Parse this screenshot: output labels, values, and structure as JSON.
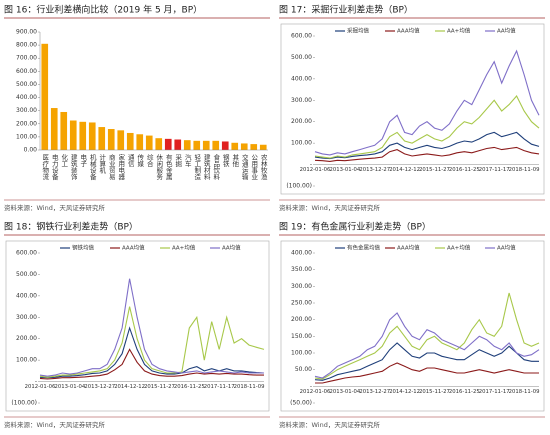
{
  "chart_data": [
    {
      "type": "bar",
      "title": "图 16：行业利差横向比较（2019 年 5 月，BP）",
      "source": "资料来源：Wind，天风证券研究所",
      "categories": [
        "医疗物流",
        "电力设备",
        "化工",
        "建筑装饰",
        "电子",
        "机械设备",
        "计算机",
        "商业贸易",
        "家用电器",
        "通信",
        "传媒",
        "综合",
        "休闲服务",
        "有色金属",
        "采掘",
        "汽车",
        "轻工制造",
        "建筑材料",
        "食品饮料",
        "钢铁",
        "其他",
        "交通运输",
        "公用事业",
        "农林牧渔"
      ],
      "values": [
        810,
        320,
        290,
        225,
        215,
        210,
        175,
        160,
        150,
        130,
        120,
        110,
        90,
        85,
        80,
        75,
        70,
        70,
        70,
        65,
        55,
        50,
        45,
        40
      ],
      "colors": [
        "#f5a300",
        "#f5a300",
        "#f5a300",
        "#f5a300",
        "#f5a300",
        "#f5a300",
        "#f5a300",
        "#f5a300",
        "#f5a300",
        "#f5a300",
        "#f5a300",
        "#f5a300",
        "#f5a300",
        "#e02020",
        "#e02020",
        "#f5a300",
        "#f5a300",
        "#f5a300",
        "#f5a300",
        "#e02020",
        "#f5a300",
        "#f5a300",
        "#f5a300",
        "#f5a300"
      ],
      "ylim": [
        0,
        900
      ],
      "yticks": [
        {
          "value": 0,
          "label": "0.00"
        },
        {
          "value": 100,
          "label": "100.00"
        },
        {
          "value": 200,
          "label": "200.00"
        },
        {
          "value": 300,
          "label": "300.00"
        },
        {
          "value": 400,
          "label": "400.00"
        },
        {
          "value": 500,
          "label": "500.00"
        },
        {
          "value": 600,
          "label": "600.00"
        },
        {
          "value": 700,
          "label": "700.00"
        },
        {
          "value": 800,
          "label": "800.00"
        },
        {
          "value": 900,
          "label": "900.00"
        }
      ]
    },
    {
      "type": "line",
      "title": "图 17：采掘行业利差走势（BP）",
      "source": "资料来源：Wind，天风证券研究所",
      "categories": [
        "2012-01-06",
        null,
        null,
        null,
        "2013-01-04",
        null,
        null,
        null,
        "2013-12-27",
        null,
        null,
        null,
        "2014-12-12",
        null,
        null,
        null,
        "2015-11-27",
        null,
        null,
        null,
        "2016-11-25",
        null,
        null,
        null,
        "2017-11-17",
        null,
        null,
        null,
        "2018-11-09",
        null,
        null
      ],
      "series": [
        {
          "name": "采掘均值",
          "color": "#1f3f7a",
          "values": [
            35,
            30,
            28,
            35,
            32,
            38,
            42,
            45,
            50,
            60,
            90,
            100,
            80,
            70,
            80,
            90,
            80,
            75,
            85,
            100,
            110,
            105,
            120,
            140,
            150,
            130,
            140,
            150,
            120,
            95,
            85
          ]
        },
        {
          "name": "AAA均值",
          "color": "#8b1a1a",
          "values": [
            20,
            18,
            15,
            20,
            18,
            22,
            25,
            28,
            30,
            35,
            60,
            70,
            50,
            40,
            45,
            50,
            45,
            40,
            45,
            55,
            60,
            55,
            65,
            75,
            80,
            70,
            75,
            80,
            65,
            55,
            50
          ]
        },
        {
          "name": "AA+均值",
          "color": "#a8c84a",
          "values": [
            40,
            35,
            30,
            40,
            35,
            45,
            50,
            55,
            60,
            80,
            130,
            150,
            110,
            100,
            120,
            140,
            120,
            110,
            130,
            170,
            200,
            190,
            220,
            260,
            300,
            250,
            280,
            320,
            250,
            200,
            170
          ]
        },
        {
          "name": "AA均值",
          "color": "#7f6fc8",
          "values": [
            60,
            50,
            45,
            55,
            50,
            60,
            70,
            80,
            90,
            120,
            200,
            230,
            150,
            140,
            180,
            200,
            170,
            160,
            190,
            250,
            300,
            280,
            350,
            420,
            480,
            380,
            460,
            530,
            420,
            300,
            230
          ]
        }
      ],
      "ylim": [
        -100,
        600
      ],
      "yticks": [
        {
          "value": -100,
          "label": "(100.00)"
        },
        {
          "value": 0,
          "label": "-"
        },
        {
          "value": 100,
          "label": "100.00"
        },
        {
          "value": 200,
          "label": "200.00"
        },
        {
          "value": 300,
          "label": "300.00"
        },
        {
          "value": 400,
          "label": "400.00"
        },
        {
          "value": 500,
          "label": "500.00"
        },
        {
          "value": 600,
          "label": "600.00"
        }
      ]
    },
    {
      "type": "line",
      "title": "图 18：钢铁行业利差走势（BP）",
      "source": "资料来源：Wind，天风证券研究所",
      "categories": [
        "2012-01-06",
        null,
        null,
        null,
        "2013-01-04",
        null,
        null,
        null,
        "2013-12-27",
        null,
        null,
        null,
        "2014-12-12",
        null,
        null,
        null,
        "2015-11-27",
        null,
        null,
        null,
        "2016-11-25",
        null,
        null,
        null,
        "2017-11-17",
        null,
        null,
        null,
        "2018-11-09",
        null,
        null
      ],
      "series": [
        {
          "name": "钢铁均值",
          "color": "#1f3f7a",
          "values": [
            20,
            18,
            20,
            25,
            25,
            28,
            32,
            38,
            40,
            50,
            80,
            130,
            250,
            150,
            80,
            50,
            40,
            35,
            35,
            40,
            60,
            70,
            50,
            60,
            50,
            60,
            50,
            50,
            45,
            42,
            40
          ]
        },
        {
          "name": "AAA均值",
          "color": "#8b1a1a",
          "values": [
            15,
            12,
            15,
            18,
            18,
            20,
            22,
            25,
            28,
            35,
            55,
            80,
            150,
            90,
            50,
            35,
            28,
            25,
            25,
            28,
            35,
            40,
            35,
            38,
            35,
            38,
            35,
            35,
            32,
            30,
            30
          ]
        },
        {
          "name": "AA+均值",
          "color": "#a8c84a",
          "values": [
            25,
            20,
            25,
            30,
            30,
            35,
            40,
            45,
            50,
            60,
            100,
            180,
            350,
            200,
            100,
            60,
            50,
            40,
            40,
            45,
            250,
            300,
            100,
            280,
            150,
            300,
            180,
            200,
            170,
            160,
            150
          ]
        },
        {
          "name": "AA均值",
          "color": "#7f6fc8",
          "values": [
            30,
            25,
            30,
            40,
            35,
            40,
            50,
            60,
            60,
            80,
            150,
            250,
            480,
            300,
            150,
            80,
            60,
            50,
            45,
            40,
            45,
            50,
            40,
            45,
            50,
            45,
            40,
            45,
            40,
            40,
            40
          ]
        }
      ],
      "ylim": [
        -100,
        600
      ],
      "yticks": [
        {
          "value": -100,
          "label": "(100.00)"
        },
        {
          "value": 0,
          "label": "-"
        },
        {
          "value": 100,
          "label": "100.00"
        },
        {
          "value": 200,
          "label": "200.00"
        },
        {
          "value": 300,
          "label": "300.00"
        },
        {
          "value": 400,
          "label": "400.00"
        },
        {
          "value": 500,
          "label": "500.00"
        },
        {
          "value": 600,
          "label": "600.00"
        }
      ]
    },
    {
      "type": "line",
      "title": "图 19：有色金属行业利差走势（BP）",
      "source": "资料来源：Wind，天风证券研究所",
      "categories": [
        "2012-01-06",
        null,
        null,
        null,
        "2013-01-04",
        null,
        null,
        null,
        "2013-12-27",
        null,
        null,
        null,
        "2014-12-12",
        null,
        null,
        null,
        "2015-11-27",
        null,
        null,
        null,
        "2016-11-25",
        null,
        null,
        null,
        "2017-11-17",
        null,
        null,
        null,
        "2018-11-09",
        null,
        null
      ],
      "series": [
        {
          "name": "有色金属均值",
          "color": "#1f3f7a",
          "values": [
            20,
            18,
            25,
            35,
            40,
            45,
            50,
            60,
            70,
            80,
            110,
            130,
            110,
            90,
            85,
            100,
            100,
            90,
            85,
            80,
            80,
            95,
            110,
            100,
            90,
            100,
            120,
            100,
            80,
            75,
            75
          ]
        },
        {
          "name": "AAA均值",
          "color": "#8b1a1a",
          "values": [
            10,
            10,
            15,
            20,
            25,
            28,
            30,
            35,
            40,
            45,
            60,
            70,
            60,
            50,
            45,
            55,
            55,
            50,
            45,
            40,
            40,
            45,
            50,
            45,
            40,
            45,
            50,
            45,
            40,
            40,
            40
          ]
        },
        {
          "name": "AA+均值",
          "color": "#a8c84a",
          "values": [
            25,
            22,
            35,
            50,
            60,
            70,
            80,
            90,
            100,
            120,
            160,
            180,
            150,
            120,
            110,
            140,
            150,
            130,
            120,
            110,
            130,
            170,
            200,
            160,
            150,
            180,
            280,
            200,
            130,
            120,
            130
          ]
        },
        {
          "name": "AA均值",
          "color": "#7f6fc8",
          "values": [
            30,
            25,
            40,
            60,
            70,
            80,
            90,
            110,
            120,
            150,
            200,
            220,
            180,
            150,
            140,
            170,
            160,
            140,
            130,
            120,
            110,
            130,
            150,
            140,
            120,
            110,
            130,
            100,
            90,
            95,
            110
          ]
        }
      ],
      "ylim": [
        -50,
        400
      ],
      "yticks": [
        {
          "value": -50,
          "label": "(50.00)"
        },
        {
          "value": 0,
          "label": "-"
        },
        {
          "value": 50,
          "label": "50.00"
        },
        {
          "value": 100,
          "label": "100.00"
        },
        {
          "value": 150,
          "label": "150.00"
        },
        {
          "value": 200,
          "label": "200.00"
        },
        {
          "value": 250,
          "label": "250.00"
        },
        {
          "value": 300,
          "label": "300.00"
        },
        {
          "value": 350,
          "label": "350.00"
        },
        {
          "value": 400,
          "label": "400.00"
        }
      ]
    }
  ]
}
